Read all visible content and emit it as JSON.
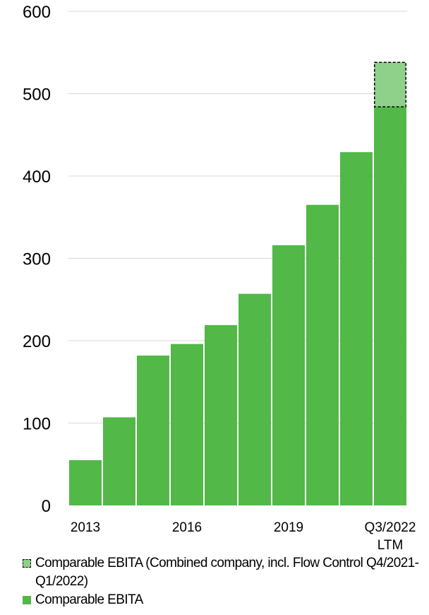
{
  "chart_data": {
    "type": "bar",
    "stacked": true,
    "categories": [
      "2013",
      "",
      "",
      "2016",
      "",
      "",
      "2019",
      "",
      "",
      "Q3/2022\nLTM"
    ],
    "series": [
      {
        "name": "Comparable EBITA",
        "color": "#52b848",
        "values": [
          55,
          107,
          182,
          196,
          219,
          257,
          316,
          365,
          429,
          484
        ]
      },
      {
        "name": "Comparable EBITA (Combined company, incl. Flow Control Q4/2021-Q1/2022)",
        "color": "#8fd18a",
        "border": "dashed",
        "values": [
          null,
          null,
          null,
          null,
          null,
          null,
          null,
          null,
          null,
          54
        ]
      }
    ],
    "ylim": [
      0,
      600
    ],
    "yticks": [
      0,
      100,
      200,
      300,
      400,
      500,
      600
    ],
    "grid": true,
    "legend": "bottom"
  },
  "legend": {
    "items": [
      {
        "label": "Comparable EBITA (Combined company, incl. Flow Control Q4/2021-Q1/2022)"
      },
      {
        "label": "Comparable EBITA"
      }
    ]
  }
}
